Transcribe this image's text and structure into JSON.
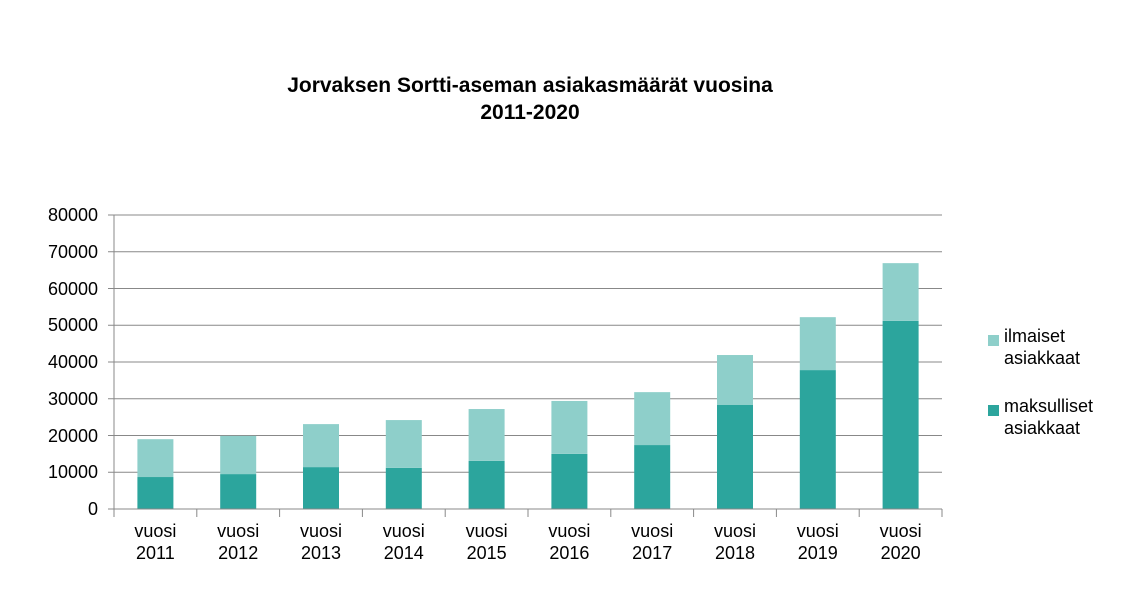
{
  "chart_data": {
    "type": "stacked_bar",
    "title": "Jorvaksen Sortti-aseman asiakasmäärät vuosina 2011-2020",
    "categories": [
      "vuosi 2011",
      "vuosi 2012",
      "vuosi 2013",
      "vuosi 2014",
      "vuosi 2015",
      "vuosi 2016",
      "vuosi 2017",
      "vuosi 2018",
      "vuosi 2019",
      "vuosi 2020"
    ],
    "series": [
      {
        "name": "maksulliset asiakkaat",
        "color": "#2ca59d",
        "values": [
          8700,
          9500,
          11400,
          11200,
          13100,
          15000,
          17400,
          28300,
          37800,
          51200
        ]
      },
      {
        "name": "ilmaiset asiakkaat",
        "color": "#8ecfca",
        "values": [
          10300,
          10400,
          11700,
          13000,
          14100,
          14400,
          14400,
          13600,
          14400,
          15700
        ]
      }
    ],
    "ylim": [
      0,
      80000
    ],
    "yticks": [
      0,
      10000,
      20000,
      30000,
      40000,
      50000,
      60000,
      70000,
      80000
    ],
    "grid": true
  }
}
